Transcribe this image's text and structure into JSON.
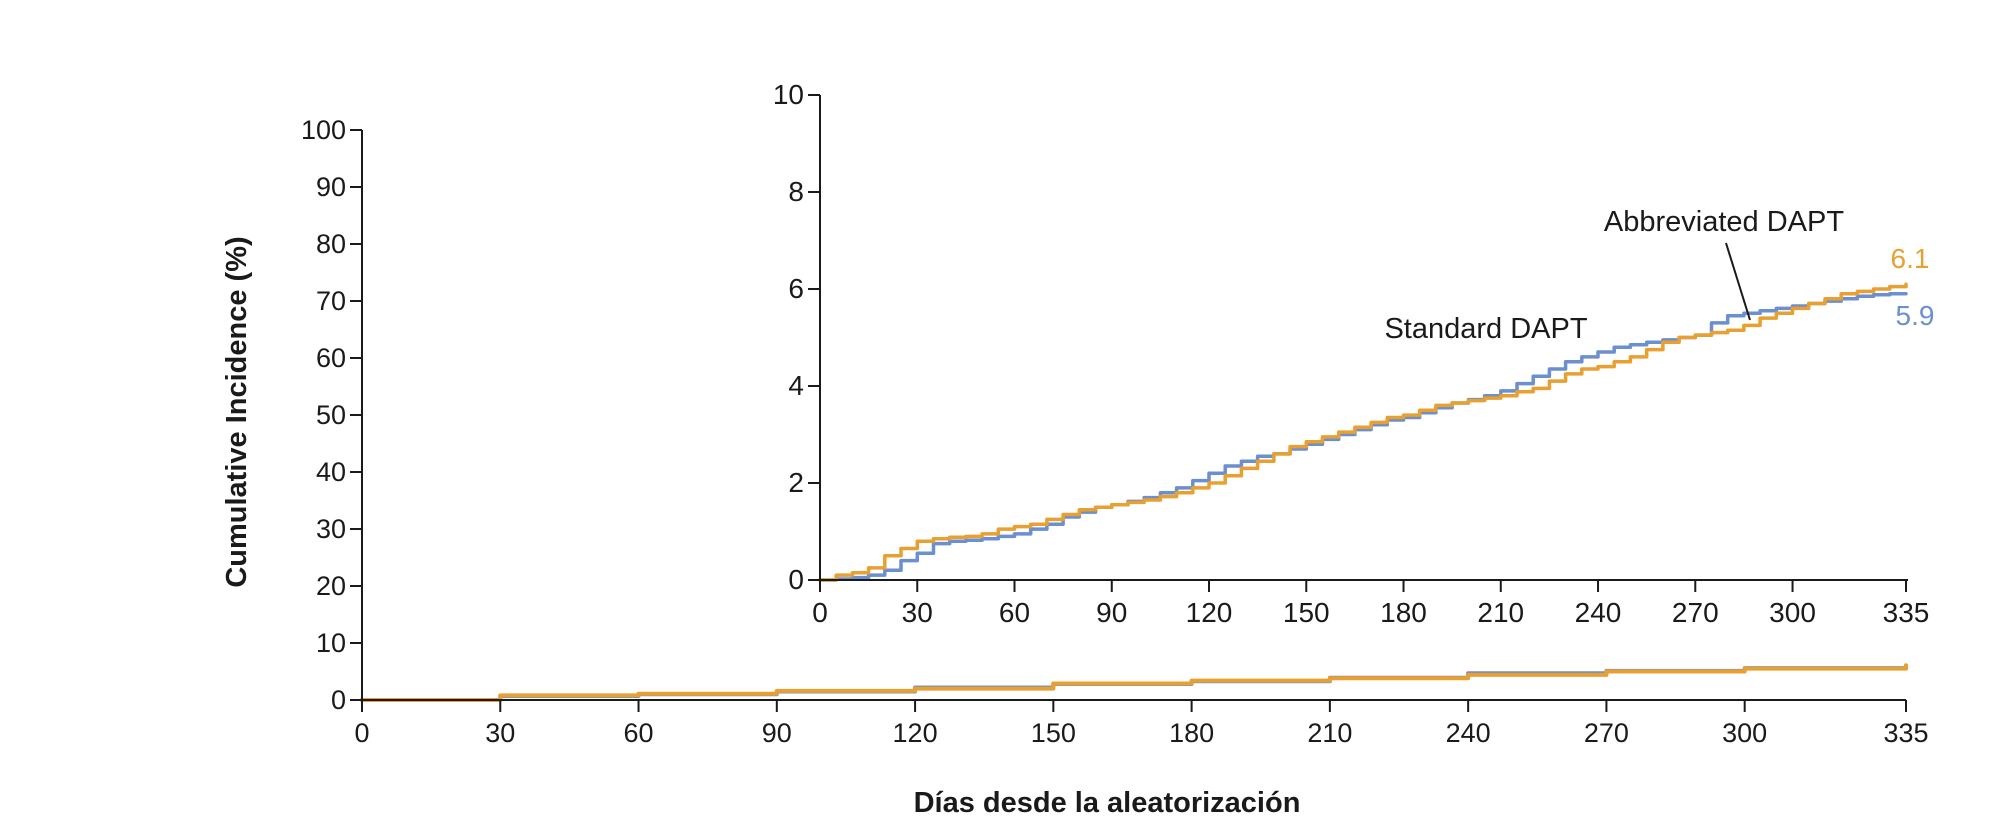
{
  "chart_data": [
    {
      "type": "line",
      "role": "main",
      "xlabel": "Días desde la aleatorización",
      "ylabel": "Cumulative Incidence (%)",
      "xlim": [
        0,
        335
      ],
      "ylim": [
        0,
        100
      ],
      "xticks": [
        "0",
        "30",
        "60",
        "90",
        "120",
        "150",
        "180",
        "210",
        "240",
        "270",
        "300",
        "335"
      ],
      "yticks": [
        "0",
        "10",
        "20",
        "30",
        "40",
        "50",
        "60",
        "70",
        "80",
        "90",
        "100"
      ],
      "grid": false,
      "series": [
        {
          "name": "Standard DAPT",
          "color": "#6b8fcf",
          "x": [
            0,
            30,
            60,
            90,
            120,
            150,
            180,
            210,
            240,
            270,
            300,
            335
          ],
          "y": [
            0,
            0.7,
            1.0,
            1.5,
            2.2,
            2.8,
            3.3,
            3.9,
            4.7,
            5.1,
            5.6,
            5.9
          ]
        },
        {
          "name": "Abbreviated DAPT",
          "color": "#e8a030",
          "x": [
            0,
            30,
            60,
            90,
            120,
            150,
            180,
            210,
            240,
            270,
            300,
            335
          ],
          "y": [
            0,
            0.8,
            1.1,
            1.6,
            2.0,
            2.9,
            3.4,
            3.8,
            4.4,
            5.0,
            5.5,
            6.1
          ]
        }
      ]
    },
    {
      "type": "line",
      "role": "inset",
      "xlim": [
        0,
        335
      ],
      "ylim": [
        0,
        10
      ],
      "xticks": [
        "0",
        "30",
        "60",
        "90",
        "120",
        "150",
        "180",
        "210",
        "240",
        "270",
        "300",
        "335"
      ],
      "yticks": [
        "0",
        "2",
        "4",
        "6",
        "8",
        "10"
      ],
      "annotations": {
        "standard": "Standard DAPT",
        "abbreviated": "Abbreviated DAPT"
      },
      "end_values": {
        "abbreviated": "6.1",
        "standard": "5.9"
      },
      "series": [
        {
          "name": "Standard DAPT",
          "color": "#6b8fcf",
          "x": [
            0,
            5,
            10,
            15,
            20,
            25,
            30,
            35,
            40,
            45,
            50,
            55,
            60,
            65,
            70,
            75,
            80,
            85,
            90,
            95,
            100,
            105,
            110,
            115,
            120,
            125,
            130,
            135,
            140,
            145,
            150,
            155,
            160,
            165,
            170,
            175,
            180,
            185,
            190,
            195,
            200,
            205,
            210,
            215,
            220,
            225,
            230,
            235,
            240,
            245,
            250,
            255,
            260,
            265,
            270,
            275,
            280,
            285,
            290,
            295,
            300,
            305,
            310,
            315,
            320,
            325,
            330,
            335
          ],
          "y": [
            0,
            0.02,
            0.05,
            0.1,
            0.2,
            0.4,
            0.55,
            0.75,
            0.8,
            0.82,
            0.85,
            0.9,
            0.95,
            1.05,
            1.15,
            1.3,
            1.4,
            1.5,
            1.55,
            1.62,
            1.7,
            1.8,
            1.9,
            2.05,
            2.2,
            2.35,
            2.45,
            2.55,
            2.6,
            2.7,
            2.8,
            2.9,
            3.0,
            3.1,
            3.2,
            3.3,
            3.35,
            3.45,
            3.55,
            3.65,
            3.72,
            3.8,
            3.9,
            4.05,
            4.2,
            4.35,
            4.5,
            4.6,
            4.7,
            4.8,
            4.85,
            4.9,
            4.95,
            5.0,
            5.05,
            5.3,
            5.45,
            5.5,
            5.55,
            5.6,
            5.65,
            5.7,
            5.75,
            5.8,
            5.85,
            5.88,
            5.9,
            5.9
          ]
        },
        {
          "name": "Abbreviated DAPT",
          "color": "#e8a030",
          "x": [
            0,
            5,
            10,
            15,
            20,
            25,
            30,
            35,
            40,
            45,
            50,
            55,
            60,
            65,
            70,
            75,
            80,
            85,
            90,
            95,
            100,
            105,
            110,
            115,
            120,
            125,
            130,
            135,
            140,
            145,
            150,
            155,
            160,
            165,
            170,
            175,
            180,
            185,
            190,
            195,
            200,
            205,
            210,
            215,
            220,
            225,
            230,
            235,
            240,
            245,
            250,
            255,
            260,
            265,
            270,
            275,
            280,
            285,
            290,
            295,
            300,
            305,
            310,
            315,
            320,
            325,
            330,
            335
          ],
          "y": [
            0,
            0.1,
            0.15,
            0.25,
            0.5,
            0.65,
            0.8,
            0.85,
            0.88,
            0.9,
            0.95,
            1.05,
            1.1,
            1.15,
            1.25,
            1.35,
            1.45,
            1.5,
            1.55,
            1.6,
            1.65,
            1.72,
            1.8,
            1.9,
            2.0,
            2.15,
            2.3,
            2.45,
            2.6,
            2.75,
            2.85,
            2.95,
            3.05,
            3.15,
            3.25,
            3.35,
            3.4,
            3.5,
            3.6,
            3.65,
            3.7,
            3.75,
            3.8,
            3.88,
            3.95,
            4.1,
            4.25,
            4.35,
            4.4,
            4.5,
            4.6,
            4.75,
            4.9,
            5.0,
            5.05,
            5.1,
            5.15,
            5.25,
            5.4,
            5.5,
            5.6,
            5.7,
            5.8,
            5.9,
            5.95,
            6.0,
            6.05,
            6.1
          ]
        }
      ]
    }
  ]
}
